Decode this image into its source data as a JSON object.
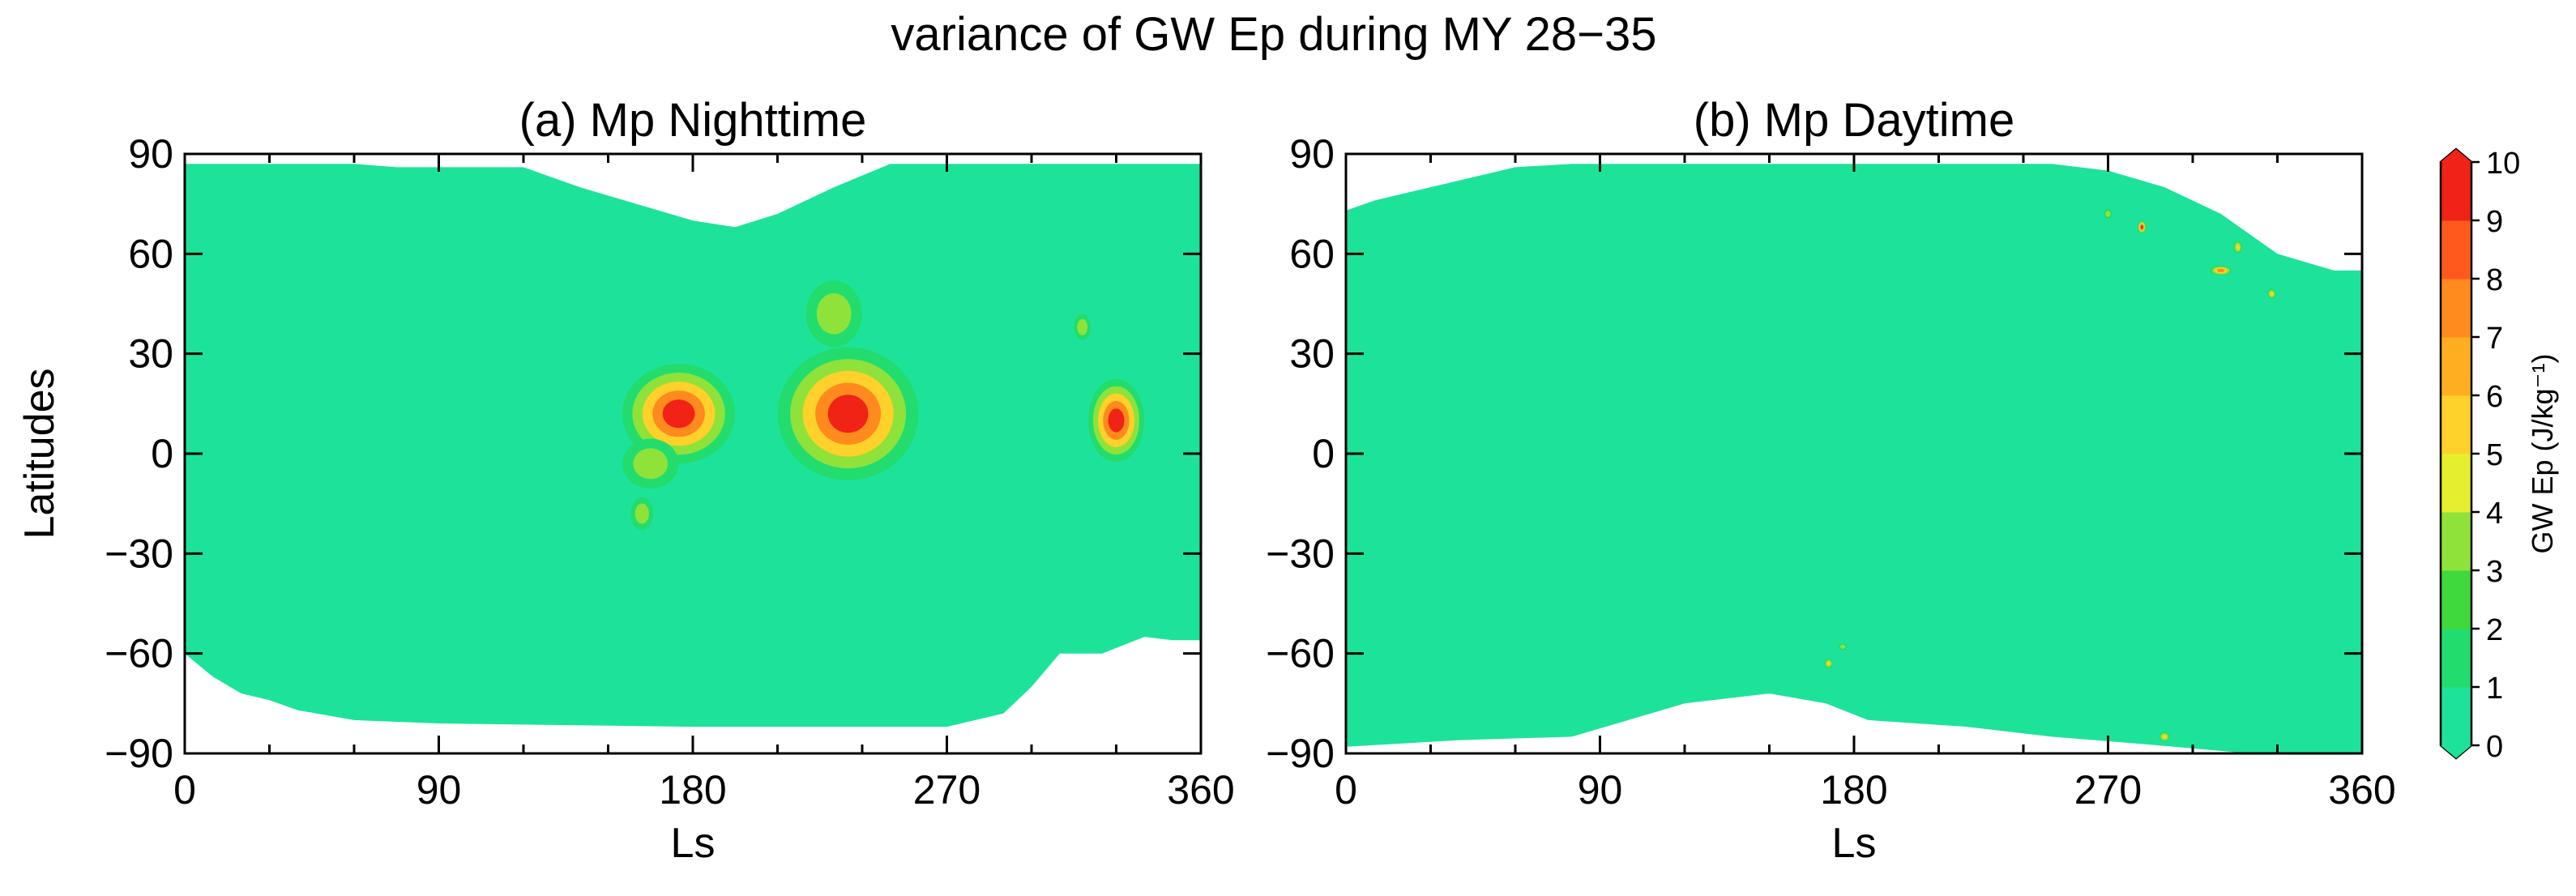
{
  "title": "variance of GW Ep during MY 28−35",
  "colors": {
    "background_field": "#1de39a",
    "colorbar": [
      "#1de39a",
      "#22dd6e",
      "#3fd93c",
      "#8fe23a",
      "#e6ef2e",
      "#ffd12a",
      "#ffae22",
      "#ff8a1e",
      "#ff5a1e",
      "#f02316"
    ]
  },
  "colorbar": {
    "label": "GW Ep (J/kg⁻¹)",
    "min": 0,
    "max": 10,
    "ticks": [
      "0",
      "1",
      "2",
      "3",
      "4",
      "5",
      "6",
      "7",
      "8",
      "9",
      "10"
    ]
  },
  "chart_data": [
    {
      "type": "heatmap",
      "title": "(a) Mp Nighttime",
      "xlabel": "Ls",
      "ylabel": "Latitudes",
      "xlim": [
        0,
        360
      ],
      "ylim": [
        -90,
        90
      ],
      "xticks": [
        "0",
        "90",
        "180",
        "270",
        "360"
      ],
      "yticks": [
        "90",
        "60",
        "30",
        "0",
        "−30",
        "−60",
        "−90"
      ],
      "value_range": [
        0,
        10
      ],
      "background_value": 0.5,
      "coverage_north": [
        [
          0,
          87
        ],
        [
          60,
          87
        ],
        [
          75,
          86
        ],
        [
          120,
          86
        ],
        [
          140,
          80
        ],
        [
          160,
          75
        ],
        [
          180,
          70
        ],
        [
          195,
          68
        ],
        [
          210,
          72
        ],
        [
          230,
          80
        ],
        [
          250,
          87
        ],
        [
          360,
          87
        ]
      ],
      "coverage_south": [
        [
          0,
          -60
        ],
        [
          10,
          -67
        ],
        [
          20,
          -72
        ],
        [
          30,
          -74
        ],
        [
          40,
          -77
        ],
        [
          60,
          -80
        ],
        [
          90,
          -81
        ],
        [
          180,
          -82
        ],
        [
          270,
          -82
        ],
        [
          290,
          -78
        ],
        [
          300,
          -70
        ],
        [
          310,
          -60
        ],
        [
          325,
          -60
        ],
        [
          340,
          -55
        ],
        [
          350,
          -56
        ],
        [
          360,
          -56
        ]
      ],
      "hotspots": [
        {
          "ls": 175,
          "lat": 12,
          "width_ls": 40,
          "height_lat": 30,
          "value": 10
        },
        {
          "ls": 165,
          "lat": -3,
          "width_ls": 20,
          "height_lat": 15,
          "value": 5
        },
        {
          "ls": 162,
          "lat": -18,
          "width_ls": 8,
          "height_lat": 10,
          "value": 4
        },
        {
          "ls": 235,
          "lat": 12,
          "width_ls": 50,
          "height_lat": 40,
          "value": 10
        },
        {
          "ls": 230,
          "lat": 42,
          "width_ls": 20,
          "height_lat": 20,
          "value": 4
        },
        {
          "ls": 330,
          "lat": 10,
          "width_ls": 20,
          "height_lat": 25,
          "value": 10
        },
        {
          "ls": 318,
          "lat": 38,
          "width_ls": 6,
          "height_lat": 8,
          "value": 4
        }
      ]
    },
    {
      "type": "heatmap",
      "title": "(b) Mp Daytime",
      "xlabel": "Ls",
      "ylabel": "",
      "xlim": [
        0,
        360
      ],
      "ylim": [
        -90,
        90
      ],
      "xticks": [
        "0",
        "90",
        "180",
        "270",
        "360"
      ],
      "yticks": [
        "90",
        "60",
        "30",
        "0",
        "−30",
        "−60",
        "−90"
      ],
      "value_range": [
        0,
        10
      ],
      "background_value": 0.5,
      "coverage_north": [
        [
          0,
          73
        ],
        [
          10,
          76
        ],
        [
          20,
          78
        ],
        [
          40,
          82
        ],
        [
          60,
          86
        ],
        [
          80,
          87
        ],
        [
          250,
          87
        ],
        [
          270,
          85
        ],
        [
          290,
          80
        ],
        [
          310,
          72
        ],
        [
          330,
          60
        ],
        [
          350,
          55
        ],
        [
          360,
          55
        ]
      ],
      "coverage_south": [
        [
          0,
          -88
        ],
        [
          20,
          -87
        ],
        [
          40,
          -86
        ],
        [
          80,
          -85
        ],
        [
          100,
          -80
        ],
        [
          120,
          -75
        ],
        [
          150,
          -72
        ],
        [
          170,
          -75
        ],
        [
          185,
          -80
        ],
        [
          220,
          -82
        ],
        [
          250,
          -85
        ],
        [
          280,
          -87
        ],
        [
          320,
          -90
        ],
        [
          360,
          -90
        ]
      ],
      "hotspots": [
        {
          "ls": 282,
          "lat": 68,
          "width_ls": 3,
          "height_lat": 4,
          "value": 10
        },
        {
          "ls": 310,
          "lat": 55,
          "width_ls": 8,
          "height_lat": 3,
          "value": 9
        },
        {
          "ls": 316,
          "lat": 62,
          "width_ls": 3,
          "height_lat": 4,
          "value": 6
        },
        {
          "ls": 328,
          "lat": 48,
          "width_ls": 3,
          "height_lat": 3,
          "value": 6
        },
        {
          "ls": 171,
          "lat": -63,
          "width_ls": 3,
          "height_lat": 3,
          "value": 6
        },
        {
          "ls": 176,
          "lat": -58,
          "width_ls": 3,
          "height_lat": 2,
          "value": 4
        },
        {
          "ls": 290,
          "lat": -85,
          "width_ls": 4,
          "height_lat": 3,
          "value": 7
        },
        {
          "ls": 270,
          "lat": 72,
          "width_ls": 3,
          "height_lat": 3,
          "value": 4
        }
      ]
    }
  ]
}
